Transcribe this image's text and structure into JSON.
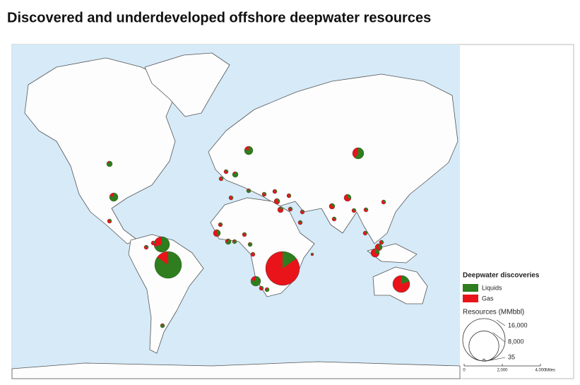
{
  "title": "Discovered and underdeveloped offshore deepwater resources",
  "legend": {
    "title": "Deepwater discoveries",
    "items": [
      {
        "label": "Liquids",
        "color": "#2e7d1e"
      },
      {
        "label": "Gas",
        "color": "#e8141a"
      }
    ],
    "size_title": "Resources (MMbbl)",
    "sizes": [
      {
        "value": 16000,
        "label": "16,000"
      },
      {
        "value": 8000,
        "label": "8,000"
      },
      {
        "value": 35,
        "label": "35"
      }
    ]
  },
  "scale_bar": {
    "ticks": [
      0,
      {
        "value": 2000,
        "label": "2,000"
      },
      {
        "value": 4000,
        "label": "4,000"
      }
    ],
    "unit": "Miles"
  }
}
